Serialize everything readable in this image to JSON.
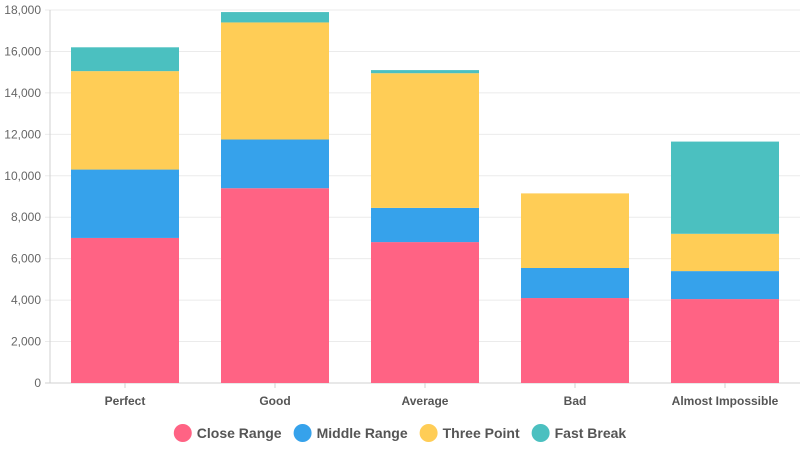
{
  "chart_data": {
    "type": "bar",
    "stacked": true,
    "categories": [
      "Perfect",
      "Good",
      "Average",
      "Bad",
      "Almost Impossible"
    ],
    "series": [
      {
        "name": "Close Range",
        "color": "#ff6384",
        "values": [
          7000,
          9400,
          6800,
          4100,
          4050
        ]
      },
      {
        "name": "Middle Range",
        "color": "#36a2eb",
        "values": [
          3300,
          2350,
          1650,
          1450,
          1350
        ]
      },
      {
        "name": "Three Point",
        "color": "#ffcd56",
        "values": [
          4750,
          5650,
          6500,
          3600,
          1800
        ]
      },
      {
        "name": "Fast Break",
        "color": "#4bc0c0",
        "values": [
          1150,
          500,
          150,
          0,
          4450
        ]
      }
    ],
    "ylim": [
      0,
      18000
    ],
    "yticks": [
      "0",
      "2,000",
      "4,000",
      "6,000",
      "8,000",
      "10,000",
      "12,000",
      "14,000",
      "16,000",
      "18,000"
    ],
    "grid": true,
    "legend": "bottom",
    "title": "",
    "xlabel": "",
    "ylabel": ""
  }
}
